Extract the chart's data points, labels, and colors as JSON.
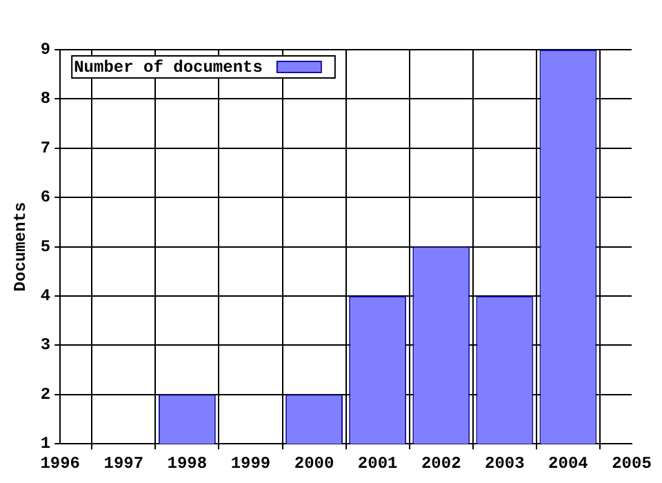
{
  "chart_data": {
    "type": "bar",
    "ylabel": "Documents",
    "x": [
      1998,
      2000,
      2001,
      2002,
      2003,
      2004
    ],
    "series": [
      {
        "name": "Number of documents",
        "color": "#8080ff",
        "values": [
          2,
          2,
          4,
          5,
          4,
          9
        ]
      }
    ],
    "xlim": [
      1996,
      2005
    ],
    "xticks": [
      1996,
      1997,
      1998,
      1999,
      2000,
      2001,
      2002,
      2003,
      2004,
      2005
    ],
    "ylim": [
      1,
      9
    ],
    "yticks": [
      1,
      2,
      3,
      4,
      5,
      6,
      7,
      8,
      9
    ],
    "grid": true,
    "legend": "top left"
  }
}
